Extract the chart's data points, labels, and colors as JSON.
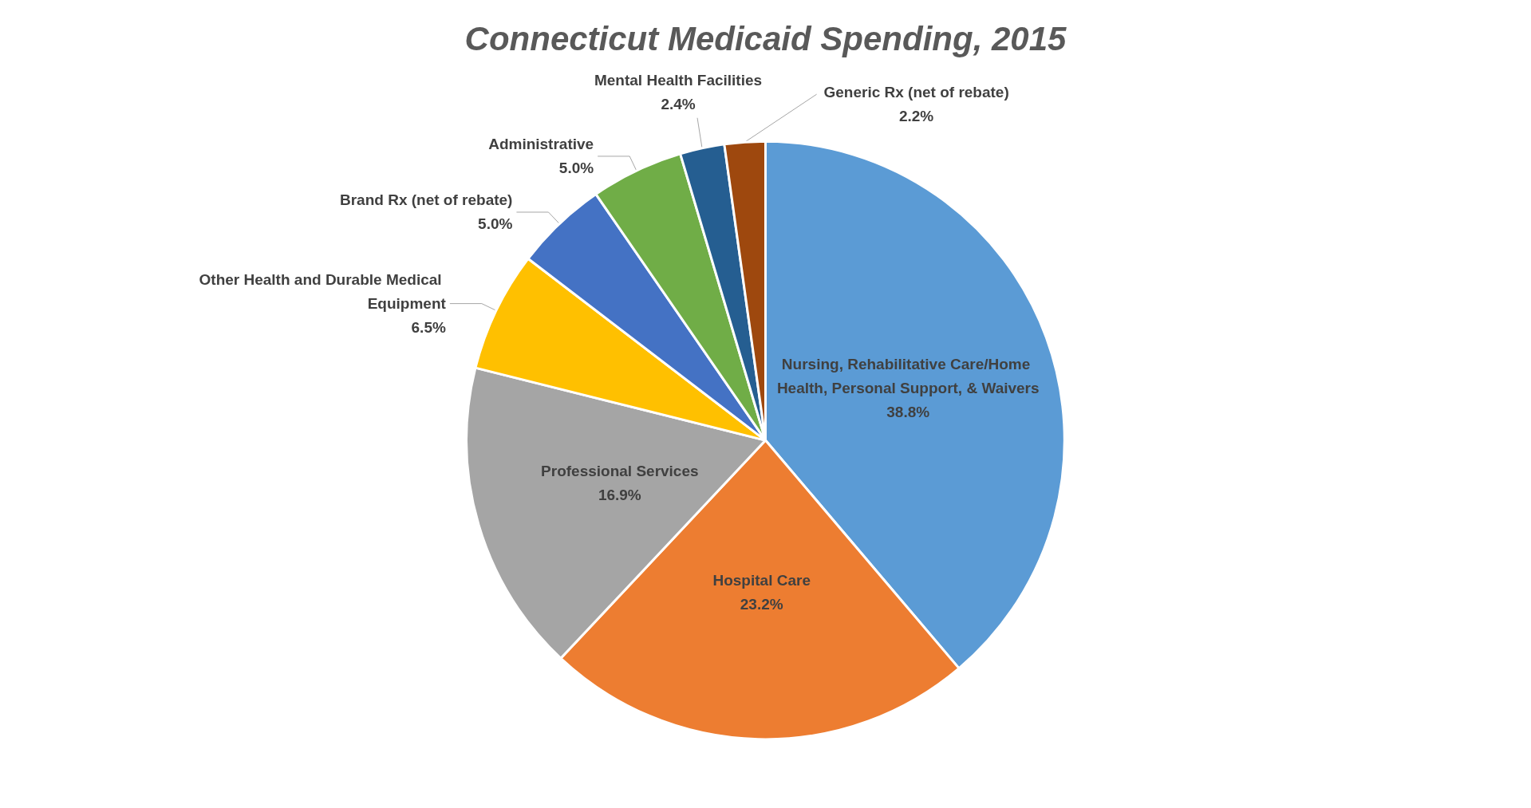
{
  "chart_data": {
    "type": "pie",
    "title": "Connecticut Medicaid Spending, 2015",
    "categories": [
      "Nursing, Rehabilitative Care/Home Health, Personal Support, & Waivers",
      "Hospital Care",
      "Professional Services",
      "Other Health and Durable Medical Equipment",
      "Brand Rx (net of rebate)",
      "Administrative",
      "Mental Health Facilities",
      "Generic Rx (net of rebate)"
    ],
    "values": [
      38.8,
      23.2,
      16.9,
      6.5,
      5.0,
      5.0,
      2.4,
      2.2
    ],
    "value_labels": [
      "38.8%",
      "23.2%",
      "16.9%",
      "6.5%",
      "5.0%",
      "5.0%",
      "2.4%",
      "2.2%"
    ],
    "colors": [
      "#5b9bd5",
      "#ed7d31",
      "#a5a5a5",
      "#ffc000",
      "#4472c4",
      "#70ad47",
      "#255e91",
      "#9e480e"
    ],
    "legend": false
  }
}
